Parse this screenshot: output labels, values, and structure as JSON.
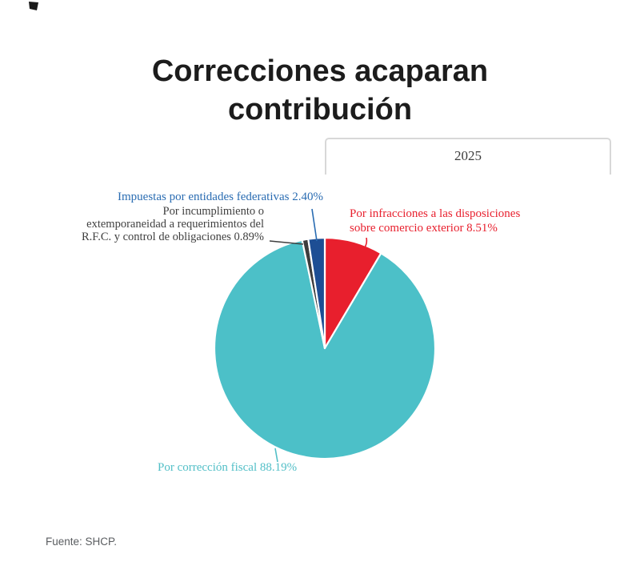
{
  "title": "Correcciones acaparan\ncontribución",
  "tab": {
    "label": "2025"
  },
  "footer": {
    "source": "Fuente: SHCP."
  },
  "colors": {
    "teal": "#4cc0c8",
    "red": "#e81f2d",
    "blue": "#1d4e94",
    "dark": "#3d3d3d",
    "gap": "#ffffff",
    "label_blue": "#2a6cb2",
    "label_red": "#e8202e",
    "label_teal": "#52bfc7",
    "label_gray": "#3f3f3f",
    "logo_mark": "#1a1a1a"
  },
  "chart_data": {
    "type": "pie",
    "title": "Correcciones acaparan contribución",
    "year_tab": "2025",
    "units": "%",
    "direction": "clockwise",
    "start_angle_deg": 0,
    "legend_position": "callout-labels",
    "slices": [
      {
        "label": "Por infracciones a las disposiciones sobre comercio exterior",
        "value": 8.51,
        "color": "#e81f2d"
      },
      {
        "label": "Por corrección fiscal",
        "value": 88.19,
        "color": "#4cc0c8"
      },
      {
        "label": "Por incumplimiento o extemporaneidad a requerimientos del R.F.C. y control de obligaciones",
        "value": 0.89,
        "color": "#3d3d3d"
      },
      {
        "label": "Impuestas por entidades federativas",
        "value": 2.4,
        "color": "#1d4e94"
      }
    ]
  },
  "callouts": {
    "federativas": "Impuestas por entidades federativas 2.40%",
    "incumplimiento": "Por incumplimiento o\nextemporaneidad a requerimientos del\nR.F.C. y control de obligaciones 0.89%",
    "infracciones": "Por infracciones a las disposiciones\nsobre comercio exterior 8.51%",
    "correccion": "Por corrección fiscal 88.19%"
  }
}
